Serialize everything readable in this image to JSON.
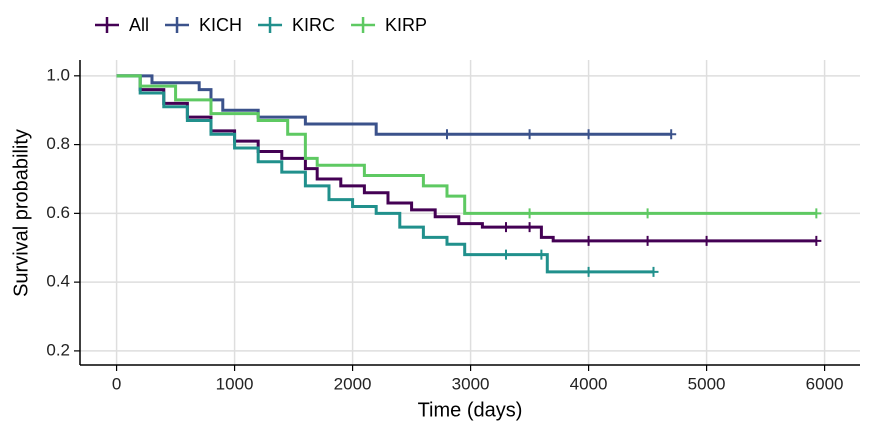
{
  "chart_data": {
    "type": "line",
    "step": true,
    "x_label": "Time (days)",
    "y_label": "Survival probability",
    "xlim": [
      -310,
      6300
    ],
    "ylim": [
      0.159,
      1.046
    ],
    "xticks": [
      0,
      1000,
      2000,
      3000,
      4000,
      5000,
      6000
    ],
    "yticks": [
      0.2,
      0.4,
      0.6,
      0.8,
      {
        "value": 1,
        "label": "1.0"
      }
    ],
    "grid": true,
    "legend": "top-left",
    "series": [
      {
        "name": "All",
        "color": "#440154",
        "x": [
          0,
          200,
          400,
          600,
          800,
          1000,
          1200,
          1400,
          1600,
          1700,
          1900,
          2100,
          2300,
          2500,
          2700,
          2900,
          3100,
          3300,
          3500,
          3600,
          3700,
          4000,
          4500,
          5000,
          5930
        ],
        "values": [
          1.0,
          0.96,
          0.92,
          0.88,
          0.84,
          0.81,
          0.78,
          0.76,
          0.73,
          0.7,
          0.68,
          0.66,
          0.63,
          0.61,
          0.59,
          0.57,
          0.56,
          0.56,
          0.56,
          0.53,
          0.52,
          0.52,
          0.52,
          0.52,
          0.52
        ]
      },
      {
        "name": "KICH",
        "color": "#3b528b",
        "x": [
          0,
          300,
          700,
          800,
          900,
          1200,
          1600,
          2200,
          2800,
          3500,
          4000,
          4700
        ],
        "values": [
          1.0,
          0.98,
          0.96,
          0.93,
          0.9,
          0.88,
          0.86,
          0.83,
          0.83,
          0.83,
          0.83,
          0.83
        ]
      },
      {
        "name": "KIRC",
        "color": "#21908c",
        "x": [
          0,
          200,
          400,
          600,
          800,
          1000,
          1200,
          1400,
          1600,
          1800,
          2000,
          2200,
          2400,
          2600,
          2800,
          2950,
          3300,
          3600,
          3650,
          4000,
          4550
        ],
        "values": [
          1.0,
          0.95,
          0.91,
          0.87,
          0.83,
          0.79,
          0.75,
          0.72,
          0.68,
          0.64,
          0.62,
          0.6,
          0.56,
          0.53,
          0.51,
          0.48,
          0.48,
          0.48,
          0.43,
          0.43,
          0.43
        ]
      },
      {
        "name": "KIRP",
        "color": "#5ec962",
        "x": [
          0,
          200,
          500,
          800,
          1200,
          1450,
          1600,
          1700,
          2100,
          2600,
          2800,
          2950,
          3500,
          4500,
          5930
        ],
        "values": [
          1.0,
          0.97,
          0.93,
          0.89,
          0.87,
          0.83,
          0.76,
          0.74,
          0.71,
          0.68,
          0.65,
          0.6,
          0.6,
          0.6,
          0.6
        ]
      }
    ]
  }
}
